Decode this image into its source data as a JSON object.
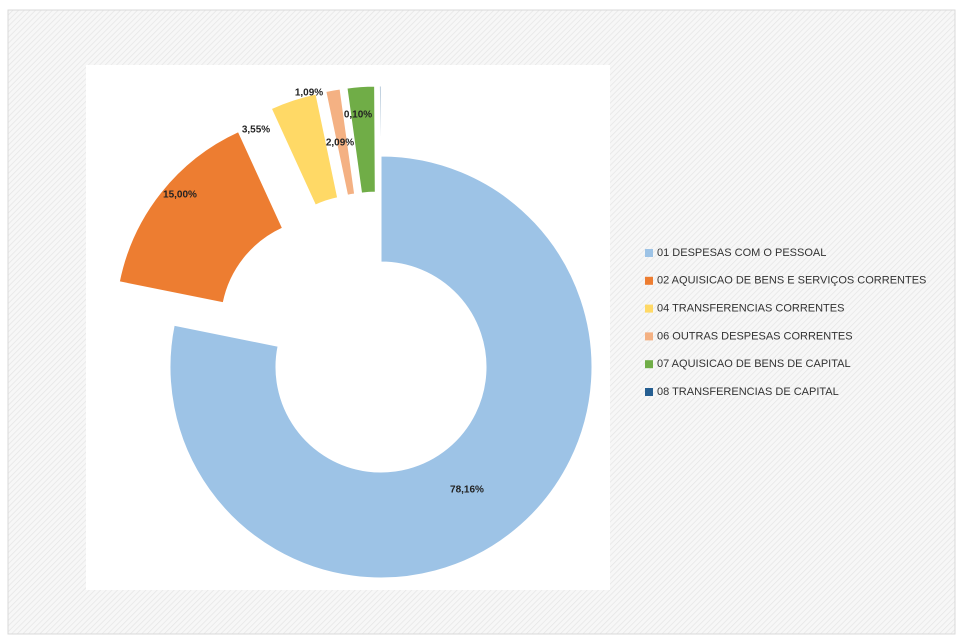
{
  "chart_data": {
    "type": "donut",
    "categories": [
      "01 DESPESAS COM O PESSOAL",
      "02 AQUISICAO DE BENS E SERVIÇOS CORRENTES",
      "04 TRANSFERENCIAS CORRENTES",
      "06 OUTRAS DESPESAS CORRENTES",
      "07 AQUISICAO DE BENS DE CAPITAL",
      "08 TRANSFERENCIAS DE CAPITAL"
    ],
    "values": [
      78.16,
      15.0,
      3.55,
      1.09,
      2.09,
      0.1
    ],
    "value_labels": [
      "78,16%",
      "15,00%",
      "3,55%",
      "1,09%",
      "2,09%",
      "0,10%"
    ],
    "colors": [
      "#9dc3e6",
      "#ed7d31",
      "#ffd966",
      "#f4b183",
      "#70ad47",
      "#255e91"
    ],
    "legend": "right"
  }
}
